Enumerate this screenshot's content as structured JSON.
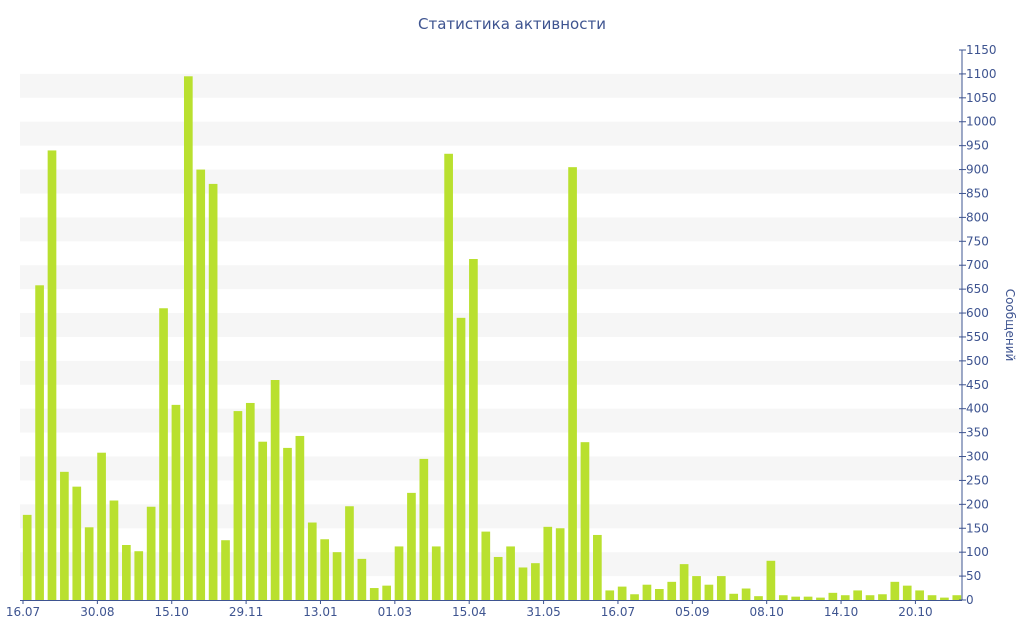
{
  "chart_data": {
    "type": "bar",
    "title": "Статистика активности",
    "ylabel": "Сообщений",
    "xlabel": "",
    "ylim": [
      0,
      1150
    ],
    "y_ticks": [
      0,
      50,
      100,
      150,
      200,
      250,
      300,
      350,
      400,
      450,
      500,
      550,
      600,
      650,
      700,
      750,
      800,
      850,
      900,
      950,
      1000,
      1050,
      1100,
      1150
    ],
    "y_axis_side": "right",
    "grid": "alternating horizontal bands",
    "legend": "none",
    "bar_color": "#b9e02f",
    "text_color": "#3e5490",
    "x_tick_labels": [
      {
        "index": 0,
        "label": "16.07"
      },
      {
        "index": 6,
        "label": "30.08"
      },
      {
        "index": 12,
        "label": "15.10"
      },
      {
        "index": 18,
        "label": "29.11"
      },
      {
        "index": 24,
        "label": "13.01"
      },
      {
        "index": 30,
        "label": "01.03"
      },
      {
        "index": 36,
        "label": "15.04"
      },
      {
        "index": 42,
        "label": "31.05"
      },
      {
        "index": 48,
        "label": "16.07"
      },
      {
        "index": 54,
        "label": "05.09"
      },
      {
        "index": 60,
        "label": "08.10"
      },
      {
        "index": 66,
        "label": "14.10"
      },
      {
        "index": 72,
        "label": "20.10"
      }
    ],
    "values": [
      178,
      658,
      940,
      268,
      237,
      152,
      308,
      208,
      115,
      102,
      195,
      610,
      408,
      1095,
      900,
      870,
      125,
      395,
      412,
      331,
      460,
      318,
      343,
      162,
      127,
      100,
      196,
      86,
      25,
      30,
      112,
      224,
      295,
      112,
      933,
      590,
      713,
      143,
      90,
      112,
      68,
      77,
      153,
      150,
      905,
      330,
      136,
      20,
      28,
      12,
      32,
      23,
      38,
      75,
      50,
      32,
      50,
      13,
      24,
      8,
      82,
      10,
      7,
      7,
      5,
      15,
      10,
      20,
      10,
      12,
      38,
      30,
      20,
      10,
      5,
      10
    ]
  }
}
